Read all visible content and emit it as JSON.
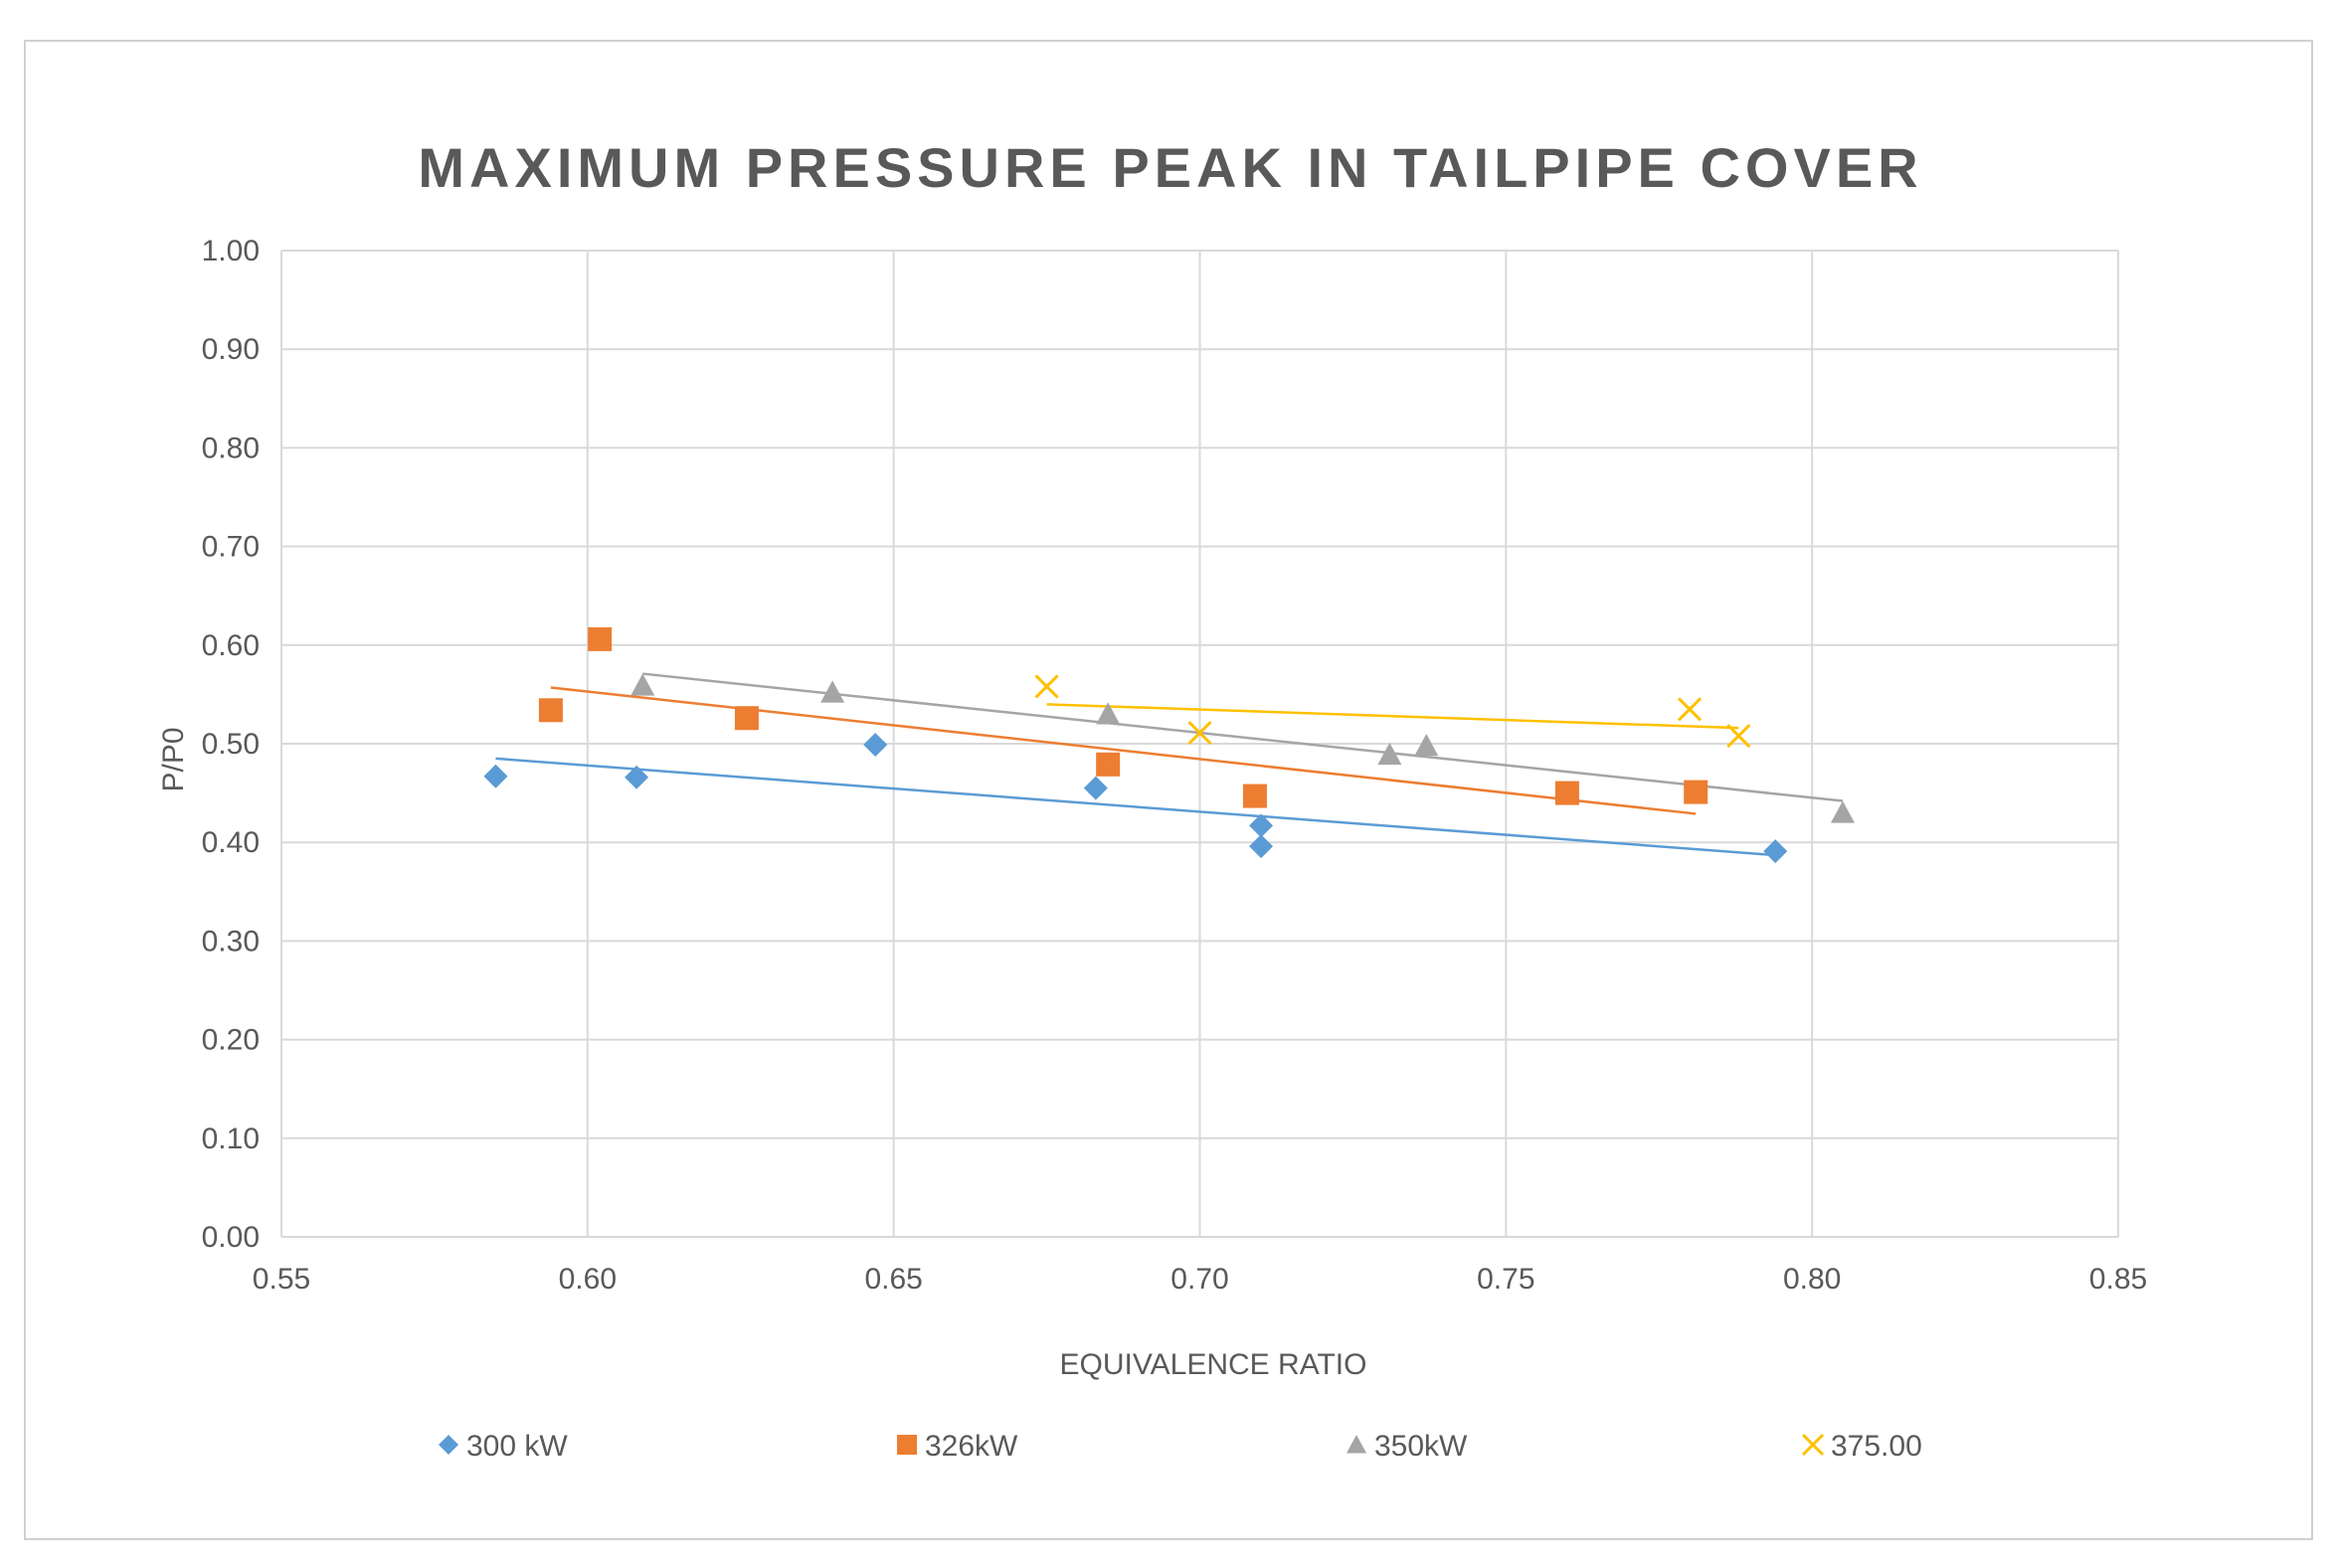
{
  "chart_data": {
    "type": "scatter",
    "title": "MAXIMUM PRESSURE PEAK IN TAILPIPE COVER",
    "xlabel": "EQUIVALENCE RATIO",
    "ylabel": "P/P0",
    "xlim": [
      0.55,
      0.85
    ],
    "ylim": [
      0.0,
      1.0
    ],
    "x_ticks": [
      "0.55",
      "0.60",
      "0.65",
      "0.70",
      "0.75",
      "0.80",
      "0.85"
    ],
    "y_ticks": [
      "0.00",
      "0.10",
      "0.20",
      "0.30",
      "0.40",
      "0.50",
      "0.60",
      "0.70",
      "0.80",
      "0.90",
      "1.00"
    ],
    "x_tick_values": [
      0.55,
      0.6,
      0.65,
      0.7,
      0.75,
      0.8,
      0.85
    ],
    "y_tick_values": [
      0.0,
      0.1,
      0.2,
      0.3,
      0.4,
      0.5,
      0.6,
      0.7,
      0.8,
      0.9,
      1.0
    ],
    "grid": true,
    "legend_position": "bottom",
    "series": [
      {
        "name": "300 kW",
        "marker": "diamond",
        "color": "#5b9bd5",
        "points": [
          [
            0.585,
            0.467
          ],
          [
            0.608,
            0.466
          ],
          [
            0.647,
            0.499
          ],
          [
            0.683,
            0.455
          ],
          [
            0.71,
            0.417
          ],
          [
            0.71,
            0.396
          ],
          [
            0.794,
            0.391
          ]
        ],
        "trendline": [
          [
            0.585,
            0.485
          ],
          [
            0.794,
            0.387
          ]
        ]
      },
      {
        "name": "326kW",
        "marker": "square",
        "color": "#ed7d31",
        "points": [
          [
            0.594,
            0.534
          ],
          [
            0.602,
            0.606
          ],
          [
            0.626,
            0.526
          ],
          [
            0.685,
            0.479
          ],
          [
            0.709,
            0.447
          ],
          [
            0.76,
            0.45
          ],
          [
            0.781,
            0.451
          ]
        ],
        "trendline": [
          [
            0.594,
            0.557
          ],
          [
            0.781,
            0.429
          ]
        ]
      },
      {
        "name": "350kW",
        "marker": "triangle",
        "color": "#a5a5a5",
        "points": [
          [
            0.609,
            0.559
          ],
          [
            0.64,
            0.552
          ],
          [
            0.685,
            0.53
          ],
          [
            0.731,
            0.489
          ],
          [
            0.737,
            0.498
          ],
          [
            0.805,
            0.43
          ]
        ],
        "trendline": [
          [
            0.609,
            0.571
          ],
          [
            0.805,
            0.442
          ]
        ]
      },
      {
        "name": "375.00",
        "marker": "x",
        "color": "#ffc000",
        "points": [
          [
            0.675,
            0.558
          ],
          [
            0.7,
            0.511
          ],
          [
            0.78,
            0.535
          ],
          [
            0.788,
            0.508
          ]
        ],
        "trendline": [
          [
            0.675,
            0.54
          ],
          [
            0.788,
            0.516
          ]
        ]
      }
    ]
  }
}
